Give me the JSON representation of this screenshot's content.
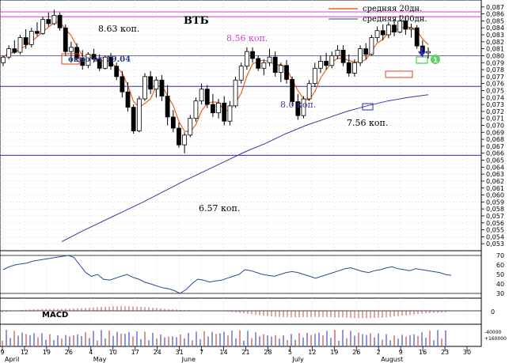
{
  "chart_data": {
    "type": "candlestick",
    "title": "ВТБ",
    "legend": [
      {
        "name": "средняя 20дн.",
        "color": "#e8621a"
      },
      {
        "name": "средняя 200дн.",
        "color": "#3a3aa0"
      }
    ],
    "legend_placement": "top-right",
    "y_axis": {
      "min": 0.052,
      "max": 0.088,
      "ticks": [
        "0.087",
        "0.086",
        "0.085",
        "0.084",
        "0.083",
        "0.082",
        "0.081",
        "0.080",
        "0.079",
        "0.078",
        "0.077",
        "0.076",
        "0.075",
        "0.074",
        "0.073",
        "0.072",
        "0.071",
        "0.070",
        "0.069",
        "0.068",
        "0.067",
        "0.066",
        "0.065",
        "0.064",
        "0.063",
        "0.062",
        "0.061",
        "0.060",
        "0.059",
        "0.058",
        "0.057",
        "0.056",
        "0.055",
        "0.054",
        "0.053"
      ],
      "tick_labels": [
        "0,087",
        "0,086",
        "0,085",
        "0,084",
        "0,083",
        "0,082",
        "0,081",
        "0,080",
        "0,079",
        "0,078",
        "0,077",
        "0,076",
        "0,075",
        "0,074",
        "0,073",
        "0,072",
        "0,071",
        "0,070",
        "0,069",
        "0,068",
        "0,067",
        "0,066",
        "0,065",
        "0,064",
        "0,063",
        "0,062",
        "0,061",
        "0,060",
        "0,059",
        "0,058",
        "0,057",
        "0,056",
        "0,055",
        "0,054",
        "0,053"
      ]
    },
    "x_axis": {
      "tick_labels": [
        "9",
        "12",
        "19",
        "26",
        "4",
        "10",
        "17",
        "24",
        "31",
        "7",
        "14",
        "21",
        "28",
        "5",
        "12",
        "19",
        "26",
        "2",
        "9",
        "16",
        "23",
        "30"
      ],
      "month_labels": [
        "April",
        "May",
        "June",
        "July",
        "August"
      ]
    },
    "levels": [
      {
        "value": 0.0863,
        "color": "#d040c8",
        "label": "8.63 коп.",
        "label_color": "#000000"
      },
      {
        "value": 0.0856,
        "color": "#d040c8",
        "label": "8.56 коп.",
        "label_color": "#d040c8"
      },
      {
        "value": 0.08,
        "color": "#6a6a9a",
        "label": "8.0 коп.",
        "label_color": "#3a3aa0"
      },
      {
        "value": 0.0756,
        "color": "#2a2ab0",
        "label": "7.56 коп.",
        "label_color": "#000000"
      },
      {
        "value": 0.0657,
        "color": "#2a2ab0",
        "label": "6.57 коп.",
        "label_color": "#000000"
      }
    ],
    "annotations": [
      {
        "text": "окно от 19.04",
        "color": "#2a3a8a"
      },
      {
        "text": "1",
        "color": "#30c030"
      }
    ],
    "candles": [
      [
        0.079,
        0.08,
        0.0785,
        0.0798
      ],
      [
        0.0798,
        0.0815,
        0.0795,
        0.081
      ],
      [
        0.081,
        0.0822,
        0.0803,
        0.0805
      ],
      [
        0.0805,
        0.083,
        0.0802,
        0.0826
      ],
      [
        0.0826,
        0.0838,
        0.081,
        0.0816
      ],
      [
        0.0816,
        0.084,
        0.0812,
        0.0835
      ],
      [
        0.0835,
        0.0848,
        0.0828,
        0.0832
      ],
      [
        0.0832,
        0.0856,
        0.083,
        0.0852
      ],
      [
        0.0852,
        0.0862,
        0.0842,
        0.0846
      ],
      [
        0.0846,
        0.0866,
        0.0844,
        0.0858
      ],
      [
        0.0858,
        0.0862,
        0.0836,
        0.084
      ],
      [
        0.084,
        0.0845,
        0.08,
        0.0806
      ],
      [
        0.0806,
        0.082,
        0.079,
        0.0812
      ],
      [
        0.0812,
        0.0818,
        0.0792,
        0.0796
      ],
      [
        0.0796,
        0.0808,
        0.078,
        0.0786
      ],
      [
        0.0786,
        0.0805,
        0.0782,
        0.0802
      ],
      [
        0.0802,
        0.081,
        0.079,
        0.0795
      ],
      [
        0.0795,
        0.0802,
        0.0778,
        0.0782
      ],
      [
        0.0782,
        0.08,
        0.078,
        0.0798
      ],
      [
        0.0798,
        0.0804,
        0.078,
        0.0785
      ],
      [
        0.0785,
        0.079,
        0.0765,
        0.077
      ],
      [
        0.077,
        0.0778,
        0.074,
        0.0748
      ],
      [
        0.0748,
        0.0762,
        0.072,
        0.0726
      ],
      [
        0.0726,
        0.073,
        0.0688,
        0.0692
      ],
      [
        0.0692,
        0.0742,
        0.069,
        0.0738
      ],
      [
        0.0738,
        0.0775,
        0.0735,
        0.077
      ],
      [
        0.077,
        0.0778,
        0.0745,
        0.0752
      ],
      [
        0.0752,
        0.077,
        0.074,
        0.0765
      ],
      [
        0.0765,
        0.0772,
        0.0735,
        0.0742
      ],
      [
        0.0742,
        0.0758,
        0.07,
        0.0712
      ],
      [
        0.0712,
        0.0722,
        0.069,
        0.0696
      ],
      [
        0.0696,
        0.0704,
        0.0668,
        0.0672
      ],
      [
        0.0672,
        0.069,
        0.066,
        0.0686
      ],
      [
        0.0686,
        0.0715,
        0.0683,
        0.071
      ],
      [
        0.071,
        0.074,
        0.0705,
        0.0735
      ],
      [
        0.0735,
        0.076,
        0.073,
        0.0752
      ],
      [
        0.0752,
        0.0758,
        0.0725,
        0.073
      ],
      [
        0.073,
        0.0745,
        0.0712,
        0.0718
      ],
      [
        0.0718,
        0.0738,
        0.071,
        0.0732
      ],
      [
        0.0732,
        0.0742,
        0.07,
        0.0706
      ],
      [
        0.0706,
        0.0735,
        0.07,
        0.0728
      ],
      [
        0.0728,
        0.077,
        0.0725,
        0.0765
      ],
      [
        0.0765,
        0.079,
        0.076,
        0.0785
      ],
      [
        0.0785,
        0.0812,
        0.078,
        0.0806
      ],
      [
        0.0806,
        0.0812,
        0.079,
        0.0796
      ],
      [
        0.0796,
        0.08,
        0.0778,
        0.0782
      ],
      [
        0.0782,
        0.0795,
        0.0772,
        0.079
      ],
      [
        0.079,
        0.081,
        0.0785,
        0.0798
      ],
      [
        0.0798,
        0.0806,
        0.077,
        0.0776
      ],
      [
        0.0776,
        0.079,
        0.0762,
        0.0786
      ],
      [
        0.0786,
        0.0794,
        0.076,
        0.0766
      ],
      [
        0.0766,
        0.077,
        0.0728,
        0.0734
      ],
      [
        0.0734,
        0.0745,
        0.0708,
        0.0714
      ],
      [
        0.0714,
        0.0742,
        0.071,
        0.0738
      ],
      [
        0.0738,
        0.0765,
        0.0735,
        0.076
      ],
      [
        0.076,
        0.079,
        0.0755,
        0.0782
      ],
      [
        0.0782,
        0.08,
        0.0775,
        0.0792
      ],
      [
        0.0792,
        0.0804,
        0.078,
        0.0786
      ],
      [
        0.0786,
        0.0806,
        0.0782,
        0.08
      ],
      [
        0.08,
        0.0815,
        0.0795,
        0.0808
      ],
      [
        0.0808,
        0.0815,
        0.0785,
        0.079
      ],
      [
        0.079,
        0.0802,
        0.077,
        0.0775
      ],
      [
        0.0775,
        0.0795,
        0.077,
        0.079
      ],
      [
        0.079,
        0.0815,
        0.0785,
        0.081
      ],
      [
        0.081,
        0.0818,
        0.0795,
        0.0802
      ],
      [
        0.0802,
        0.083,
        0.08,
        0.0826
      ],
      [
        0.0826,
        0.0842,
        0.082,
        0.0836
      ],
      [
        0.0836,
        0.0845,
        0.0822,
        0.083
      ],
      [
        0.083,
        0.0848,
        0.0825,
        0.0844
      ],
      [
        0.0844,
        0.0852,
        0.0828,
        0.0834
      ],
      [
        0.0834,
        0.0858,
        0.0832,
        0.085
      ],
      [
        0.085,
        0.0856,
        0.083,
        0.0838
      ],
      [
        0.0838,
        0.0846,
        0.0826,
        0.084
      ],
      [
        0.084,
        0.0844,
        0.081,
        0.0814
      ],
      [
        0.0814,
        0.0822,
        0.0798,
        0.0804
      ],
      [
        0.0804,
        0.0812,
        0.0796,
        0.0806
      ]
    ],
    "oscillator": {
      "axis_labels": [
        "70",
        "60",
        "50",
        "40",
        "30"
      ],
      "min": 25,
      "max": 75
    },
    "macd": {
      "label": "MACD",
      "axis_label": "0"
    },
    "volume": {
      "axis_labels": [
        "-40000",
        "+160000"
      ]
    }
  }
}
